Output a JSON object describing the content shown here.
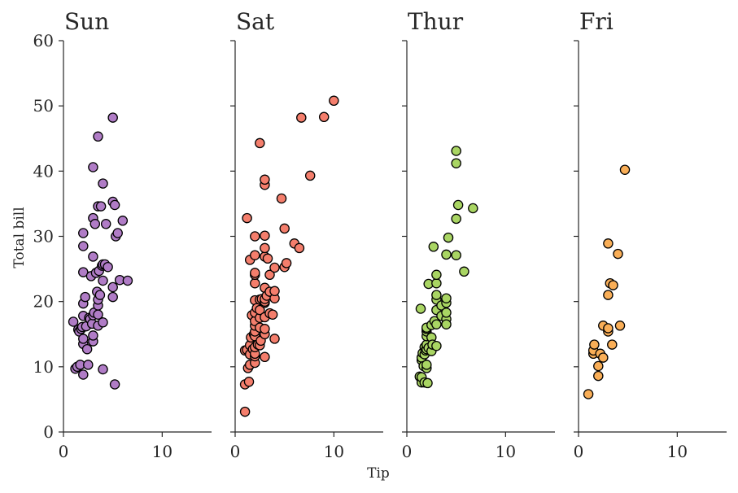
{
  "chart_data": {
    "type": "scatter",
    "xlabel": "Tip",
    "ylabel": "Total bill",
    "xlim": [
      0,
      15
    ],
    "ylim": [
      0,
      60
    ],
    "xticks": [
      0,
      10
    ],
    "yticks": [
      0,
      10,
      20,
      30,
      40,
      50,
      60
    ],
    "grid": false,
    "panels": [
      {
        "title": "Sun",
        "color": "#b07cc6",
        "points": [
          [
            1.0,
            16.9
          ],
          [
            1.2,
            9.7
          ],
          [
            1.4,
            10.0
          ],
          [
            1.5,
            15.7
          ],
          [
            1.6,
            15.4
          ],
          [
            1.7,
            10.3
          ],
          [
            1.8,
            15.8
          ],
          [
            1.9,
            16.1
          ],
          [
            2.0,
            17.8
          ],
          [
            2.0,
            13.5
          ],
          [
            2.0,
            14.3
          ],
          [
            2.0,
            8.8
          ],
          [
            2.0,
            19.7
          ],
          [
            2.0,
            24.5
          ],
          [
            2.0,
            28.5
          ],
          [
            2.0,
            30.5
          ],
          [
            2.2,
            20.7
          ],
          [
            2.3,
            16.2
          ],
          [
            2.4,
            12.7
          ],
          [
            2.5,
            10.3
          ],
          [
            2.6,
            17.5
          ],
          [
            2.7,
            17.3
          ],
          [
            2.8,
            23.9
          ],
          [
            2.9,
            16.6
          ],
          [
            3.0,
            13.9
          ],
          [
            3.0,
            14.8
          ],
          [
            3.0,
            17.9
          ],
          [
            3.0,
            26.9
          ],
          [
            3.0,
            32.8
          ],
          [
            3.0,
            40.6
          ],
          [
            3.1,
            18.3
          ],
          [
            3.2,
            31.9
          ],
          [
            3.3,
            24.4
          ],
          [
            3.4,
            21.5
          ],
          [
            3.5,
            19.4
          ],
          [
            3.5,
            16.3
          ],
          [
            3.5,
            20.3
          ],
          [
            3.5,
            18.0
          ],
          [
            3.5,
            34.6
          ],
          [
            3.5,
            45.3
          ],
          [
            3.6,
            24.7
          ],
          [
            3.7,
            21.0
          ],
          [
            3.8,
            34.6
          ],
          [
            3.9,
            25.5
          ],
          [
            4.0,
            23.2
          ],
          [
            4.0,
            25.7
          ],
          [
            4.0,
            16.8
          ],
          [
            4.0,
            9.6
          ],
          [
            4.0,
            38.1
          ],
          [
            4.2,
            25.7
          ],
          [
            4.3,
            31.9
          ],
          [
            4.5,
            25.3
          ],
          [
            5.0,
            48.2
          ],
          [
            5.0,
            35.3
          ],
          [
            5.0,
            22.2
          ],
          [
            5.0,
            20.7
          ],
          [
            5.2,
            7.3
          ],
          [
            5.2,
            34.8
          ],
          [
            5.3,
            30.0
          ],
          [
            5.5,
            30.5
          ],
          [
            5.7,
            23.3
          ],
          [
            6.0,
            32.4
          ],
          [
            6.5,
            23.2
          ]
        ]
      },
      {
        "title": "Sat",
        "color": "#f47e6c",
        "points": [
          [
            1.0,
            3.1
          ],
          [
            1.0,
            7.3
          ],
          [
            1.0,
            12.5
          ],
          [
            1.2,
            12.6
          ],
          [
            1.3,
            9.8
          ],
          [
            1.4,
            7.7
          ],
          [
            1.5,
            10.3
          ],
          [
            1.5,
            11.9
          ],
          [
            1.5,
            13.3
          ],
          [
            1.5,
            26.4
          ],
          [
            1.2,
            32.8
          ],
          [
            1.6,
            14.5
          ],
          [
            1.7,
            17.9
          ],
          [
            1.8,
            12.7
          ],
          [
            1.9,
            15.0
          ],
          [
            2.0,
            10.6
          ],
          [
            2.0,
            11.6
          ],
          [
            2.0,
            12.0
          ],
          [
            2.0,
            13.0
          ],
          [
            2.0,
            14.7
          ],
          [
            2.0,
            15.4
          ],
          [
            2.0,
            16.3
          ],
          [
            2.0,
            17.0
          ],
          [
            2.0,
            18.3
          ],
          [
            2.0,
            20.2
          ],
          [
            2.0,
            22.8
          ],
          [
            2.0,
            24.1
          ],
          [
            2.0,
            24.4
          ],
          [
            2.0,
            27.1
          ],
          [
            2.0,
            30.0
          ],
          [
            2.2,
            19.0
          ],
          [
            2.3,
            13.4
          ],
          [
            2.5,
            13.3
          ],
          [
            2.5,
            16.0
          ],
          [
            2.5,
            17.5
          ],
          [
            2.5,
            18.7
          ],
          [
            2.5,
            20.3
          ],
          [
            2.5,
            44.3
          ],
          [
            2.6,
            14.0
          ],
          [
            2.7,
            20.4
          ],
          [
            3.0,
            11.5
          ],
          [
            3.0,
            15.0
          ],
          [
            3.0,
            15.8
          ],
          [
            3.0,
            17.6
          ],
          [
            3.0,
            19.8
          ],
          [
            3.0,
            20.0
          ],
          [
            3.0,
            20.4
          ],
          [
            3.0,
            22.1
          ],
          [
            3.0,
            26.9
          ],
          [
            3.0,
            28.2
          ],
          [
            3.0,
            30.1
          ],
          [
            3.0,
            37.9
          ],
          [
            3.0,
            38.7
          ],
          [
            3.2,
            20.9
          ],
          [
            3.3,
            26.6
          ],
          [
            3.5,
            18.2
          ],
          [
            3.5,
            21.5
          ],
          [
            3.5,
            24.1
          ],
          [
            3.8,
            18.0
          ],
          [
            4.0,
            14.3
          ],
          [
            4.0,
            20.5
          ],
          [
            4.0,
            21.6
          ],
          [
            4.0,
            25.2
          ],
          [
            4.7,
            35.8
          ],
          [
            5.0,
            25.3
          ],
          [
            5.0,
            31.2
          ],
          [
            5.2,
            25.9
          ],
          [
            6.0,
            28.9
          ],
          [
            6.5,
            28.2
          ],
          [
            6.7,
            48.2
          ],
          [
            7.6,
            39.3
          ],
          [
            9.0,
            48.3
          ],
          [
            10.0,
            50.8
          ]
        ]
      },
      {
        "title": "Thur",
        "color": "#a9d563",
        "points": [
          [
            1.3,
            8.5
          ],
          [
            1.4,
            18.9
          ],
          [
            1.5,
            7.6
          ],
          [
            1.5,
            8.4
          ],
          [
            1.5,
            11.0
          ],
          [
            1.5,
            11.4
          ],
          [
            1.6,
            12.1
          ],
          [
            1.7,
            10.1
          ],
          [
            1.8,
            7.6
          ],
          [
            1.8,
            11.9
          ],
          [
            1.8,
            13.0
          ],
          [
            1.9,
            12.5
          ],
          [
            2.0,
            9.8
          ],
          [
            2.0,
            12.7
          ],
          [
            2.0,
            13.4
          ],
          [
            2.0,
            14.7
          ],
          [
            2.0,
            15.4
          ],
          [
            2.0,
            15.8
          ],
          [
            2.0,
            16.0
          ],
          [
            2.0,
            10.3
          ],
          [
            2.1,
            7.5
          ],
          [
            2.2,
            12.9
          ],
          [
            2.2,
            22.7
          ],
          [
            2.5,
            12.4
          ],
          [
            2.5,
            14.5
          ],
          [
            2.5,
            16.4
          ],
          [
            2.6,
            13.4
          ],
          [
            2.7,
            28.4
          ],
          [
            2.8,
            17.0
          ],
          [
            3.0,
            13.2
          ],
          [
            3.0,
            16.5
          ],
          [
            3.0,
            18.7
          ],
          [
            3.0,
            20.3
          ],
          [
            3.0,
            21.0
          ],
          [
            3.0,
            22.8
          ],
          [
            3.0,
            24.1
          ],
          [
            3.5,
            17.8
          ],
          [
            3.5,
            19.4
          ],
          [
            4.0,
            17.3
          ],
          [
            4.0,
            18.3
          ],
          [
            4.0,
            19.8
          ],
          [
            4.0,
            20.5
          ],
          [
            4.0,
            16.5
          ],
          [
            4.2,
            29.8
          ],
          [
            4.0,
            27.2
          ],
          [
            5.0,
            27.1
          ],
          [
            5.0,
            32.7
          ],
          [
            5.0,
            41.2
          ],
          [
            5.0,
            43.1
          ],
          [
            5.2,
            34.8
          ],
          [
            5.8,
            24.6
          ],
          [
            6.7,
            34.3
          ]
        ]
      },
      {
        "title": "Fri",
        "color": "#f9ae57",
        "points": [
          [
            1.0,
            5.8
          ],
          [
            1.5,
            12.0
          ],
          [
            1.5,
            12.5
          ],
          [
            1.6,
            13.4
          ],
          [
            2.0,
            8.6
          ],
          [
            2.0,
            10.1
          ],
          [
            2.2,
            12.0
          ],
          [
            2.5,
            11.4
          ],
          [
            2.5,
            16.3
          ],
          [
            3.0,
            15.4
          ],
          [
            3.0,
            15.9
          ],
          [
            3.0,
            21.0
          ],
          [
            3.0,
            28.9
          ],
          [
            3.2,
            22.8
          ],
          [
            3.4,
            13.4
          ],
          [
            3.5,
            22.5
          ],
          [
            4.0,
            27.3
          ],
          [
            4.2,
            16.3
          ],
          [
            4.7,
            40.2
          ]
        ]
      }
    ]
  }
}
